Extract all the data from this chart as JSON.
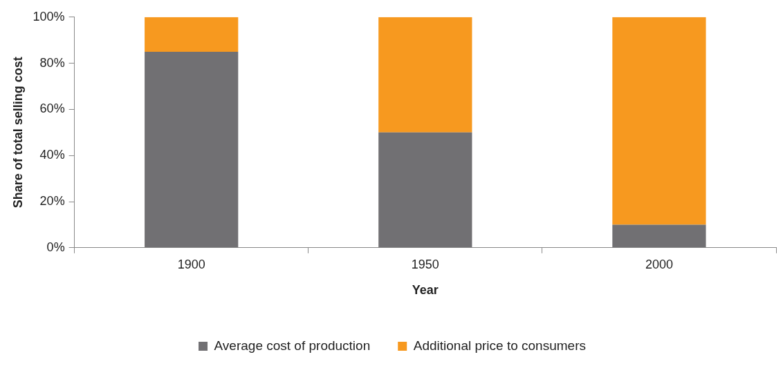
{
  "chart_data": {
    "type": "bar",
    "stacked": true,
    "xlabel": "Year",
    "ylabel": "Share of total selling cost",
    "categories": [
      "1900",
      "1950",
      "2000"
    ],
    "series": [
      {
        "name": "Average cost of production",
        "color": "#717073",
        "values": [
          85,
          50,
          10
        ]
      },
      {
        "name": "Additional price to consumers",
        "color": "#f7991f",
        "values": [
          15,
          50,
          90
        ]
      }
    ],
    "ylim": [
      0,
      100
    ],
    "yticks": [
      {
        "value": 0,
        "label": "0%"
      },
      {
        "value": 20,
        "label": "20%"
      },
      {
        "value": 40,
        "label": "40%"
      },
      {
        "value": 60,
        "label": "60%"
      },
      {
        "value": 80,
        "label": "80%"
      },
      {
        "value": 100,
        "label": "100%"
      }
    ],
    "legend": "bottom"
  }
}
